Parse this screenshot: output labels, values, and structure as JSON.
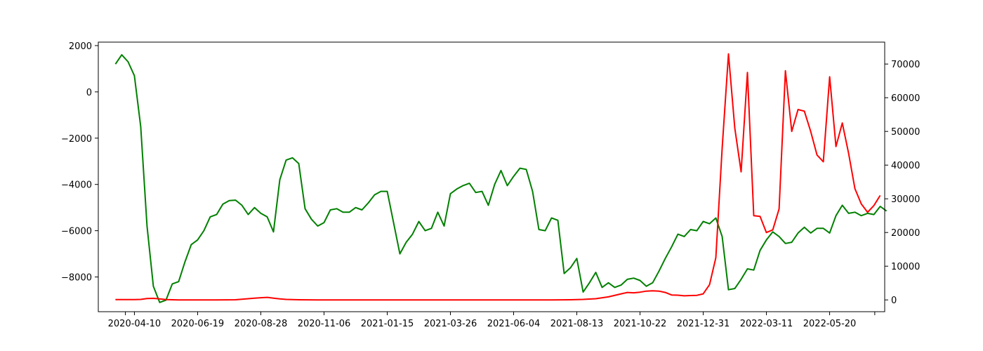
{
  "chart_data": {
    "type": "line",
    "title": "",
    "xlabel": "",
    "ylabel_left": "",
    "ylabel_right": "",
    "x_ticks": [
      "2020-04-10",
      "2020-06-19",
      "2020-08-28",
      "2020-11-06",
      "2021-01-15",
      "2021-03-26",
      "2021-06-04",
      "2021-08-13",
      "2021-10-22",
      "2021-12-31",
      "2022-03-11",
      "2022-05-20"
    ],
    "xlim": [
      "2020-03-01",
      "2022-07-20"
    ],
    "left_axis": {
      "ylim": [
        -9500,
        2150
      ],
      "ticks": [
        2000,
        0,
        -2000,
        -4000,
        -6000,
        -8000
      ],
      "tick_labels": [
        "2000",
        "0",
        "−2000",
        "−4000",
        "−6000",
        "−8000"
      ]
    },
    "right_axis": {
      "ylim": [
        -3500,
        76500
      ],
      "ticks": [
        70000,
        60000,
        50000,
        40000,
        30000,
        20000,
        10000,
        0
      ],
      "tick_labels": [
        "70000",
        "60000",
        "50000",
        "40000",
        "30000",
        "20000",
        "10000",
        "0"
      ]
    },
    "legend": "none",
    "grid": false,
    "series": [
      {
        "color": "#008000",
        "axis": "left",
        "points": [
          [
            "2020-03-20",
            1200
          ],
          [
            "2020-03-27",
            1600
          ],
          [
            "2020-04-03",
            1300
          ],
          [
            "2020-04-10",
            700
          ],
          [
            "2020-04-17",
            -1500
          ],
          [
            "2020-04-24",
            -5800
          ],
          [
            "2020-05-01",
            -8400
          ],
          [
            "2020-05-08",
            -9100
          ],
          [
            "2020-05-15",
            -9000
          ],
          [
            "2020-05-22",
            -8300
          ],
          [
            "2020-05-29",
            -8200
          ],
          [
            "2020-06-05",
            -7350
          ],
          [
            "2020-06-12",
            -6600
          ],
          [
            "2020-06-19",
            -6400
          ],
          [
            "2020-06-26",
            -6000
          ],
          [
            "2020-07-03",
            -5400
          ],
          [
            "2020-07-10",
            -5300
          ],
          [
            "2020-07-17",
            -4850
          ],
          [
            "2020-07-24",
            -4700
          ],
          [
            "2020-07-31",
            -4680
          ],
          [
            "2020-08-07",
            -4900
          ],
          [
            "2020-08-14",
            -5300
          ],
          [
            "2020-08-21",
            -5000
          ],
          [
            "2020-08-28",
            -5250
          ],
          [
            "2020-09-04",
            -5400
          ],
          [
            "2020-09-11",
            -6050
          ],
          [
            "2020-09-18",
            -3800
          ],
          [
            "2020-09-25",
            -2950
          ],
          [
            "2020-10-02",
            -2850
          ],
          [
            "2020-10-09",
            -3100
          ],
          [
            "2020-10-16",
            -5050
          ],
          [
            "2020-10-23",
            -5500
          ],
          [
            "2020-10-30",
            -5800
          ],
          [
            "2020-11-06",
            -5650
          ],
          [
            "2020-11-13",
            -5100
          ],
          [
            "2020-11-20",
            -5050
          ],
          [
            "2020-11-27",
            -5200
          ],
          [
            "2020-12-04",
            -5200
          ],
          [
            "2020-12-11",
            -5000
          ],
          [
            "2020-12-18",
            -5100
          ],
          [
            "2020-12-25",
            -4800
          ],
          [
            "2021-01-01",
            -4450
          ],
          [
            "2021-01-08",
            -4300
          ],
          [
            "2021-01-15",
            -4300
          ],
          [
            "2021-01-22",
            -5650
          ],
          [
            "2021-01-29",
            -7000
          ],
          [
            "2021-02-05",
            -6500
          ],
          [
            "2021-02-12",
            -6150
          ],
          [
            "2021-02-19",
            -5600
          ],
          [
            "2021-02-26",
            -6000
          ],
          [
            "2021-03-05",
            -5900
          ],
          [
            "2021-03-12",
            -5200
          ],
          [
            "2021-03-19",
            -5800
          ],
          [
            "2021-03-26",
            -4400
          ],
          [
            "2021-04-02",
            -4200
          ],
          [
            "2021-04-09",
            -4050
          ],
          [
            "2021-04-16",
            -3950
          ],
          [
            "2021-04-23",
            -4350
          ],
          [
            "2021-04-30",
            -4300
          ],
          [
            "2021-05-07",
            -4900
          ],
          [
            "2021-05-14",
            -4000
          ],
          [
            "2021-05-21",
            -3400
          ],
          [
            "2021-05-28",
            -4050
          ],
          [
            "2021-06-04",
            -3650
          ],
          [
            "2021-06-11",
            -3300
          ],
          [
            "2021-06-18",
            -3350
          ],
          [
            "2021-06-25",
            -4300
          ],
          [
            "2021-07-02",
            -5950
          ],
          [
            "2021-07-09",
            -6000
          ],
          [
            "2021-07-16",
            -5450
          ],
          [
            "2021-07-23",
            -5550
          ],
          [
            "2021-07-30",
            -7850
          ],
          [
            "2021-08-06",
            -7600
          ],
          [
            "2021-08-13",
            -7200
          ],
          [
            "2021-08-20",
            -8650
          ],
          [
            "2021-08-27",
            -8250
          ],
          [
            "2021-09-03",
            -7800
          ],
          [
            "2021-09-10",
            -8450
          ],
          [
            "2021-09-17",
            -8250
          ],
          [
            "2021-09-24",
            -8450
          ],
          [
            "2021-10-01",
            -8350
          ],
          [
            "2021-10-08",
            -8100
          ],
          [
            "2021-10-15",
            -8050
          ],
          [
            "2021-10-22",
            -8150
          ],
          [
            "2021-10-29",
            -8400
          ],
          [
            "2021-11-05",
            -8250
          ],
          [
            "2021-11-12",
            -7750
          ],
          [
            "2021-11-19",
            -7200
          ],
          [
            "2021-11-26",
            -6700
          ],
          [
            "2021-12-03",
            -6150
          ],
          [
            "2021-12-10",
            -6250
          ],
          [
            "2021-12-17",
            -5950
          ],
          [
            "2021-12-24",
            -6000
          ],
          [
            "2021-12-31",
            -5600
          ],
          [
            "2022-01-07",
            -5700
          ],
          [
            "2022-01-14",
            -5450
          ],
          [
            "2022-01-21",
            -6250
          ],
          [
            "2022-01-28",
            -8550
          ],
          [
            "2022-02-04",
            -8500
          ],
          [
            "2022-02-11",
            -8100
          ],
          [
            "2022-02-18",
            -7650
          ],
          [
            "2022-02-25",
            -7700
          ],
          [
            "2022-03-04",
            -6850
          ],
          [
            "2022-03-11",
            -6400
          ],
          [
            "2022-03-18",
            -6050
          ],
          [
            "2022-03-25",
            -6250
          ],
          [
            "2022-04-01",
            -6550
          ],
          [
            "2022-04-08",
            -6500
          ],
          [
            "2022-04-15",
            -6100
          ],
          [
            "2022-04-22",
            -5850
          ],
          [
            "2022-04-29",
            -6100
          ],
          [
            "2022-05-06",
            -5900
          ],
          [
            "2022-05-13",
            -5900
          ],
          [
            "2022-05-20",
            -6100
          ],
          [
            "2022-05-27",
            -5350
          ],
          [
            "2022-06-03",
            -4900
          ],
          [
            "2022-06-10",
            -5250
          ],
          [
            "2022-06-17",
            -5200
          ],
          [
            "2022-06-24",
            -5350
          ],
          [
            "2022-07-01",
            -5250
          ],
          [
            "2022-07-08",
            -5300
          ],
          [
            "2022-07-15",
            -4950
          ],
          [
            "2022-07-22",
            -5150
          ]
        ]
      },
      {
        "color": "#ff0000",
        "axis": "right",
        "points": [
          [
            "2020-03-20",
            100
          ],
          [
            "2020-03-27",
            100
          ],
          [
            "2020-04-03",
            100
          ],
          [
            "2020-04-10",
            100
          ],
          [
            "2020-04-17",
            150
          ],
          [
            "2020-04-24",
            400
          ],
          [
            "2020-05-01",
            450
          ],
          [
            "2020-05-08",
            300
          ],
          [
            "2020-05-15",
            100
          ],
          [
            "2020-05-22",
            50
          ],
          [
            "2020-05-29",
            0
          ],
          [
            "2020-06-19",
            0
          ],
          [
            "2020-07-10",
            0
          ],
          [
            "2020-07-31",
            50
          ],
          [
            "2020-08-07",
            200
          ],
          [
            "2020-08-14",
            350
          ],
          [
            "2020-08-21",
            500
          ],
          [
            "2020-08-28",
            650
          ],
          [
            "2020-09-04",
            750
          ],
          [
            "2020-09-11",
            500
          ],
          [
            "2020-09-18",
            300
          ],
          [
            "2020-09-25",
            150
          ],
          [
            "2020-10-09",
            50
          ],
          [
            "2020-10-30",
            0
          ],
          [
            "2020-12-18",
            0
          ],
          [
            "2021-03-19",
            0
          ],
          [
            "2021-05-14",
            0
          ],
          [
            "2021-07-16",
            0
          ],
          [
            "2021-08-06",
            50
          ],
          [
            "2021-08-20",
            150
          ],
          [
            "2021-09-03",
            350
          ],
          [
            "2021-09-17",
            900
          ],
          [
            "2021-10-01",
            1800
          ],
          [
            "2021-10-08",
            2200
          ],
          [
            "2021-10-15",
            2100
          ],
          [
            "2021-10-22",
            2300
          ],
          [
            "2021-10-29",
            2600
          ],
          [
            "2021-11-05",
            2700
          ],
          [
            "2021-11-12",
            2600
          ],
          [
            "2021-11-19",
            2200
          ],
          [
            "2021-11-26",
            1450
          ],
          [
            "2021-12-03",
            1400
          ],
          [
            "2021-12-10",
            1200
          ],
          [
            "2021-12-17",
            1300
          ],
          [
            "2021-12-24",
            1350
          ],
          [
            "2021-12-31",
            1800
          ],
          [
            "2022-01-07",
            4500
          ],
          [
            "2022-01-14",
            12500
          ],
          [
            "2022-01-21",
            45000
          ],
          [
            "2022-01-28",
            73000
          ],
          [
            "2022-02-04",
            51000
          ],
          [
            "2022-02-11",
            38000
          ],
          [
            "2022-02-18",
            67500
          ],
          [
            "2022-02-25",
            25000
          ],
          [
            "2022-03-04",
            24800
          ],
          [
            "2022-03-11",
            20000
          ],
          [
            "2022-03-18",
            20800
          ],
          [
            "2022-03-25",
            27000
          ],
          [
            "2022-04-01",
            68000
          ],
          [
            "2022-04-08",
            50000
          ],
          [
            "2022-04-15",
            56500
          ],
          [
            "2022-04-22",
            56000
          ],
          [
            "2022-04-29",
            50000
          ],
          [
            "2022-05-06",
            43000
          ],
          [
            "2022-05-13",
            41000
          ],
          [
            "2022-05-20",
            66200
          ],
          [
            "2022-05-27",
            45500
          ],
          [
            "2022-06-03",
            52500
          ],
          [
            "2022-06-10",
            43500
          ],
          [
            "2022-06-17",
            33000
          ],
          [
            "2022-06-24",
            28500
          ],
          [
            "2022-07-01",
            26000
          ],
          [
            "2022-07-08",
            28000
          ],
          [
            "2022-07-15",
            31000
          ]
        ]
      }
    ]
  }
}
